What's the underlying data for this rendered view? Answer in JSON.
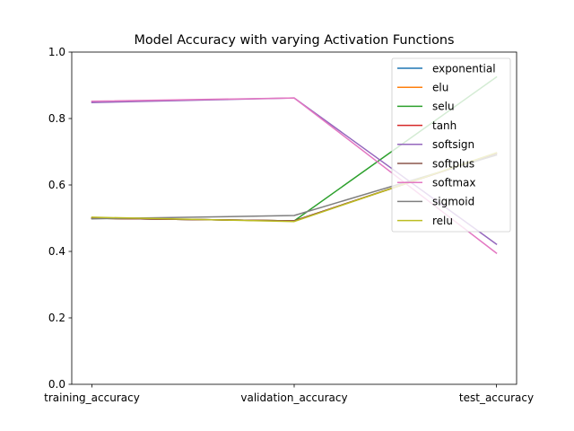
{
  "chart_data": {
    "type": "line",
    "title": "Model Accuracy with varying Activation Functions",
    "xlabel": "",
    "ylabel": "",
    "categories": [
      "training_accuracy",
      "validation_accuracy",
      "test_accuracy"
    ],
    "ylim": [
      0,
      1.0
    ],
    "yticks": [
      "0.0",
      "0.2",
      "0.4",
      "0.6",
      "0.8",
      "1.0"
    ],
    "grid": false,
    "legend_position": "top-right",
    "series": [
      {
        "name": "exponential",
        "color": "#1f77b4",
        "values": [
          0.5,
          0.492,
          0.695
        ]
      },
      {
        "name": "elu",
        "color": "#ff7f0e",
        "values": [
          0.5,
          0.492,
          0.695
        ]
      },
      {
        "name": "selu",
        "color": "#2ca02c",
        "values": [
          0.5,
          0.492,
          0.925
        ]
      },
      {
        "name": "tanh",
        "color": "#d62728",
        "values": [
          0.5,
          0.492,
          0.695
        ]
      },
      {
        "name": "softsign",
        "color": "#9467bd",
        "values": [
          0.848,
          0.862,
          0.422
        ]
      },
      {
        "name": "softplus",
        "color": "#8c564b",
        "values": [
          0.5,
          0.492,
          0.695
        ]
      },
      {
        "name": "softmax",
        "color": "#e377c2",
        "values": [
          0.852,
          0.862,
          0.395
        ]
      },
      {
        "name": "sigmoid",
        "color": "#7f7f7f",
        "values": [
          0.498,
          0.508,
          0.69
        ]
      },
      {
        "name": "relu",
        "color": "#bcbd22",
        "values": [
          0.503,
          0.49,
          0.697
        ]
      }
    ]
  }
}
